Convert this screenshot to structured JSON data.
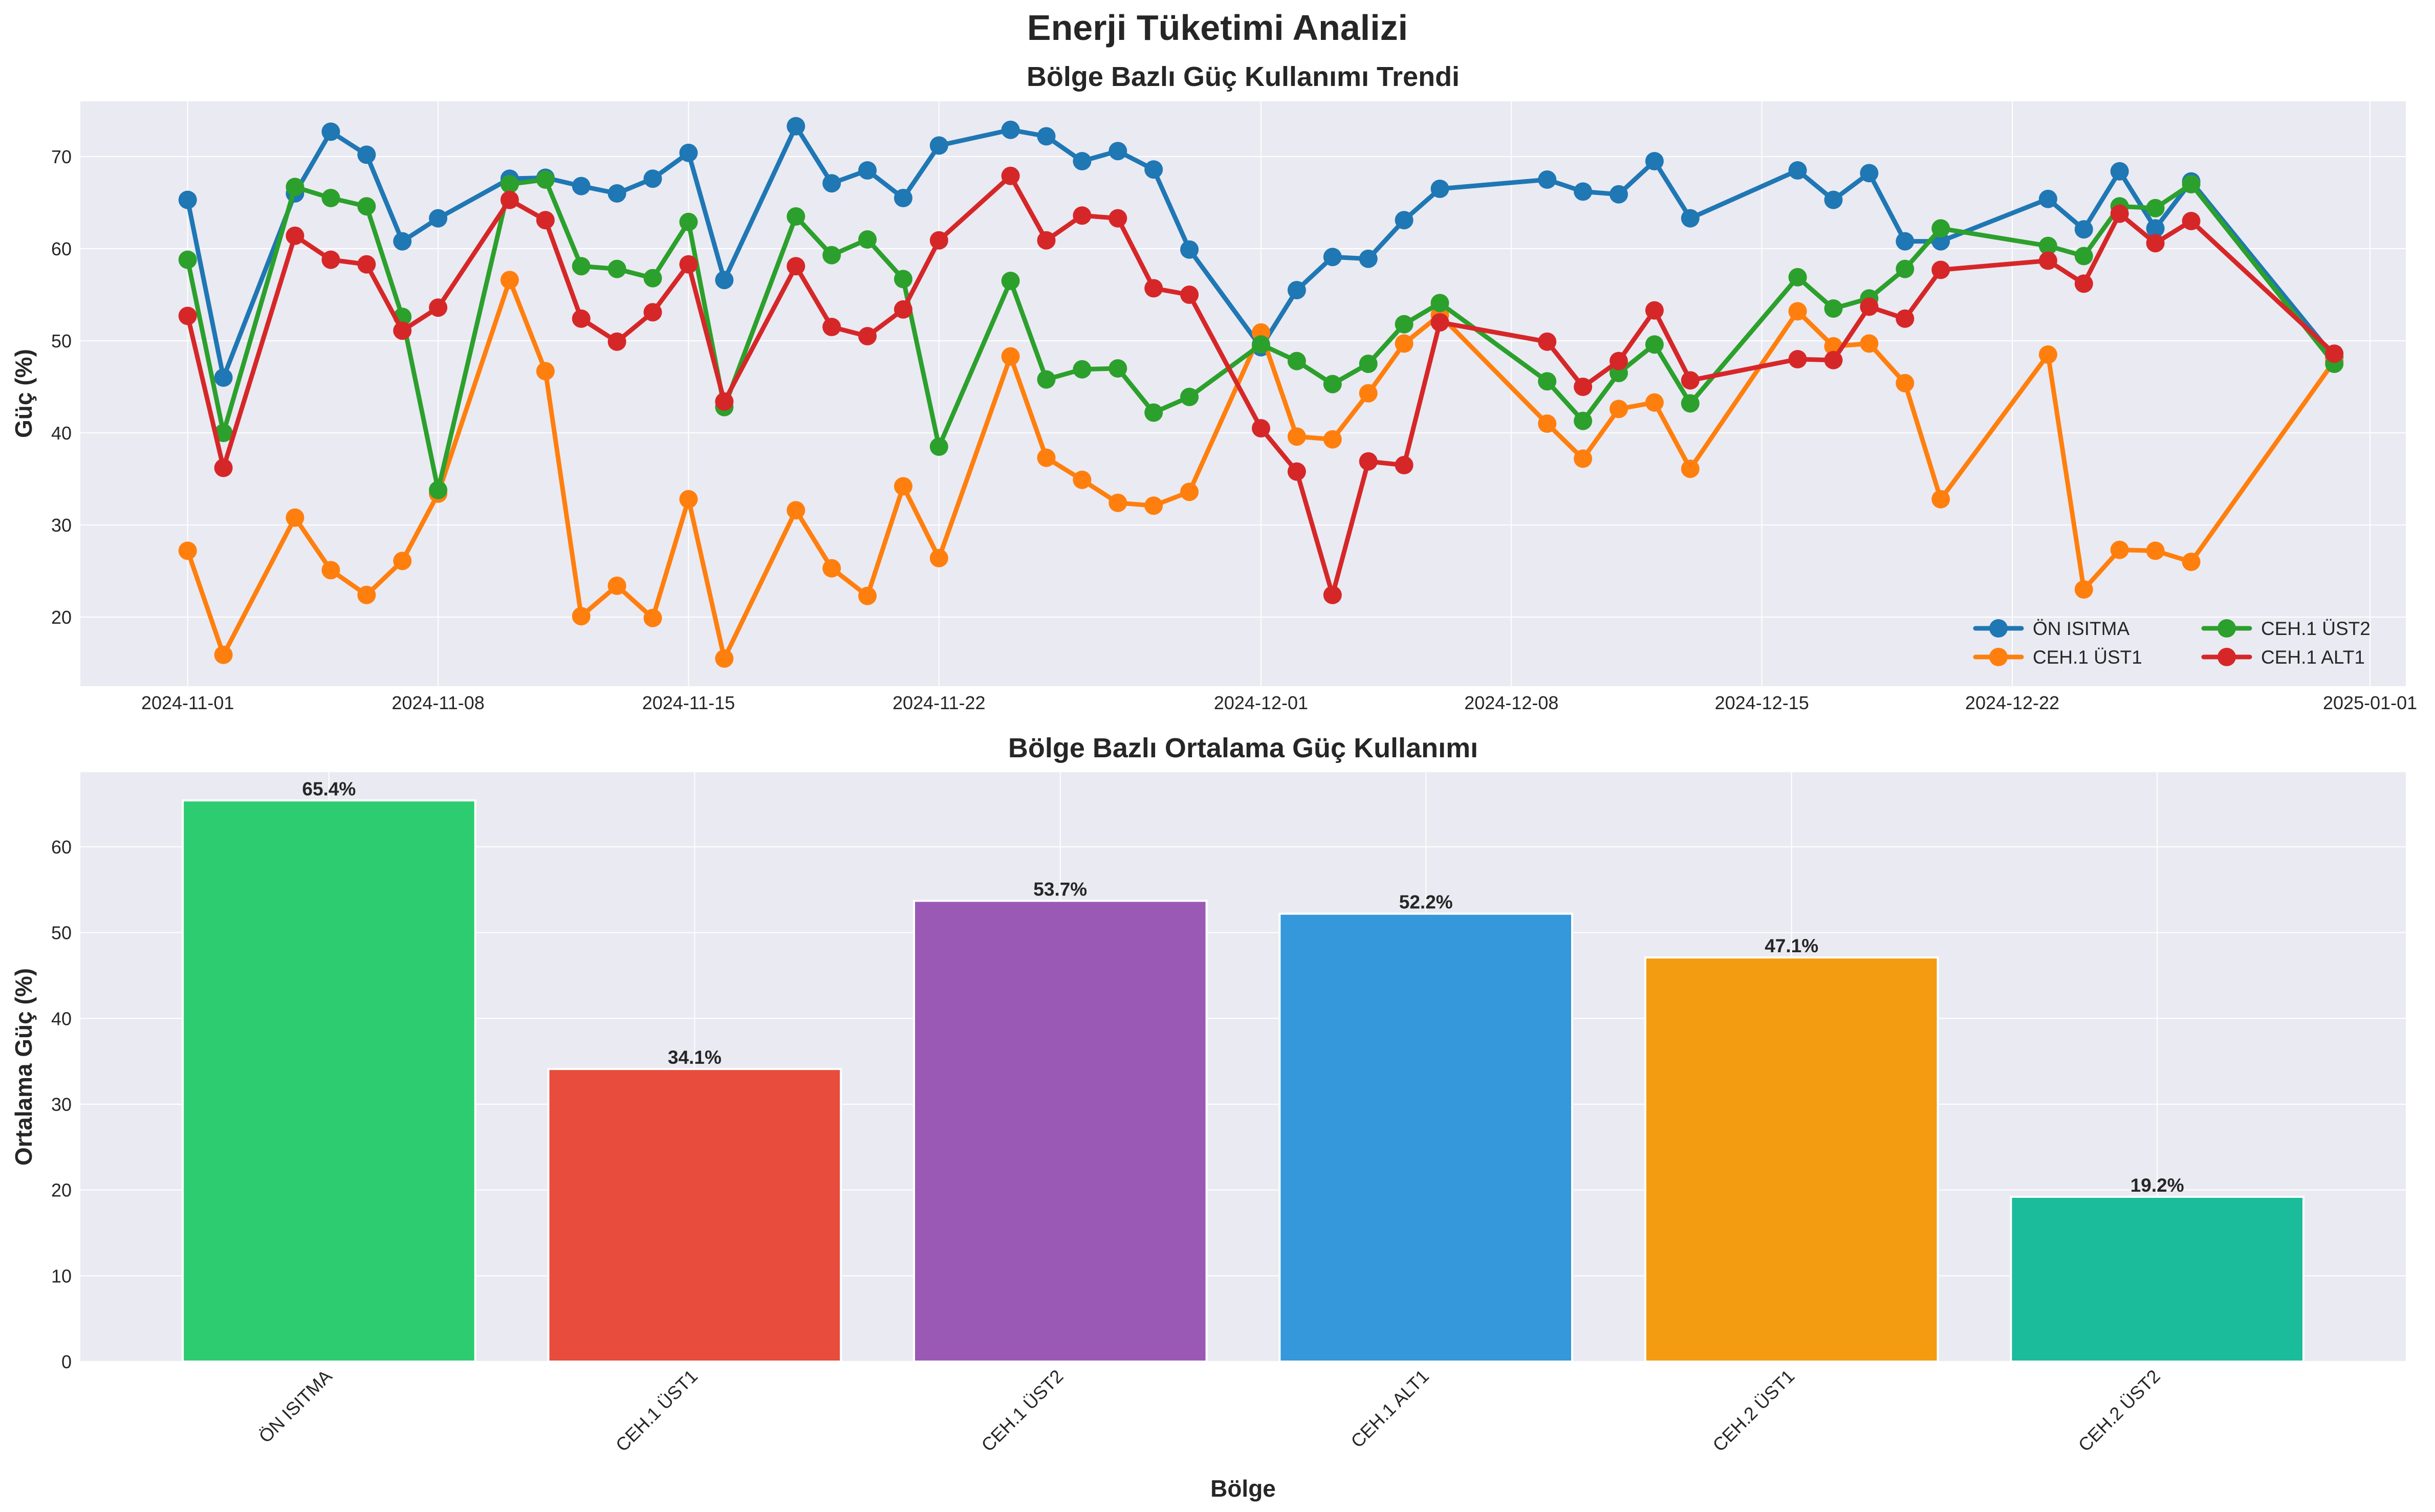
{
  "figure": {
    "suptitle": "Enerji Tüketimi Analizi",
    "colors": {
      "plot_bg": "#EAEAF2",
      "grid": "#FFFFFF",
      "text": "#262626"
    }
  },
  "chart_data": [
    {
      "type": "line",
      "title": "Bölge Bazlı Güç Kullanımı Trendi",
      "xlabel": "",
      "ylabel": "Güç (%)",
      "xlim": [
        "2024-10-29",
        "2025-01-02"
      ],
      "ylim": [
        12.5,
        76
      ],
      "x_ticks": [
        "2024-11-01",
        "2024-11-08",
        "2024-11-15",
        "2024-11-22",
        "2024-12-01",
        "2024-12-08",
        "2024-12-15",
        "2024-12-22",
        "2025-01-01"
      ],
      "y_ticks": [
        20,
        30,
        40,
        50,
        60,
        70
      ],
      "grid": true,
      "legend": {
        "placement": "bottom-right",
        "columns": 2
      },
      "x": [
        "2024-11-01",
        "2024-11-02",
        "2024-11-04",
        "2024-11-05",
        "2024-11-06",
        "2024-11-07",
        "2024-11-08",
        "2024-11-10",
        "2024-11-11",
        "2024-11-12",
        "2024-11-13",
        "2024-11-14",
        "2024-11-15",
        "2024-11-16",
        "2024-11-18",
        "2024-11-19",
        "2024-11-20",
        "2024-11-21",
        "2024-11-22",
        "2024-11-24",
        "2024-11-25",
        "2024-11-26",
        "2024-11-27",
        "2024-11-28",
        "2024-11-29",
        "2024-12-01",
        "2024-12-02",
        "2024-12-03",
        "2024-12-04",
        "2024-12-05",
        "2024-12-06",
        "2024-12-09",
        "2024-12-10",
        "2024-12-11",
        "2024-12-12",
        "2024-12-13",
        "2024-12-16",
        "2024-12-17",
        "2024-12-18",
        "2024-12-19",
        "2024-12-20",
        "2024-12-23",
        "2024-12-24",
        "2024-12-25",
        "2024-12-26",
        "2024-12-27",
        "2024-12-31"
      ],
      "series": [
        {
          "name": "ÖN ISITMA",
          "color": "#1F77B4",
          "values": [
            65.3,
            46.0,
            66.0,
            72.7,
            70.2,
            60.8,
            63.3,
            67.6,
            67.7,
            66.8,
            66.0,
            67.6,
            70.4,
            56.6,
            73.3,
            67.1,
            68.5,
            65.5,
            71.2,
            72.9,
            72.2,
            69.5,
            70.6,
            68.6,
            59.9,
            49.3,
            55.5,
            59.1,
            58.9,
            63.1,
            66.5,
            67.5,
            66.2,
            65.9,
            69.5,
            63.3,
            68.5,
            65.3,
            68.2,
            60.8,
            60.8,
            65.4,
            62.1,
            68.4,
            62.2,
            67.3,
            48.2
          ]
        },
        {
          "name": "CEH.1 ÜST1",
          "color": "#FF7F0E",
          "values": [
            27.2,
            15.9,
            30.8,
            25.1,
            22.4,
            26.1,
            33.4,
            56.6,
            46.7,
            20.1,
            23.4,
            19.9,
            32.8,
            15.5,
            31.6,
            25.3,
            22.3,
            34.2,
            26.4,
            48.3,
            37.3,
            34.9,
            32.4,
            32.1,
            33.6,
            50.9,
            39.6,
            39.3,
            44.3,
            49.7,
            52.8,
            41.0,
            37.2,
            42.6,
            43.3,
            36.1,
            53.2,
            49.4,
            49.7,
            45.4,
            32.8,
            48.5,
            23.0,
            27.3,
            27.2,
            26.0,
            47.8
          ]
        },
        {
          "name": "CEH.1 ÜST2",
          "color": "#2CA02C",
          "values": [
            58.8,
            40.0,
            66.7,
            65.5,
            64.6,
            52.6,
            33.8,
            67.0,
            67.5,
            58.1,
            57.8,
            56.8,
            62.9,
            42.8,
            63.5,
            59.3,
            61.0,
            56.7,
            38.5,
            56.5,
            45.8,
            46.9,
            47.0,
            42.2,
            43.9,
            49.6,
            47.8,
            45.3,
            47.5,
            51.8,
            54.1,
            45.6,
            41.3,
            46.5,
            49.6,
            43.2,
            56.9,
            53.5,
            54.6,
            57.8,
            62.2,
            60.3,
            59.2,
            64.6,
            64.4,
            67.0,
            47.5
          ]
        },
        {
          "name": "CEH.1 ALT1",
          "color": "#D62728",
          "values": [
            52.7,
            36.2,
            61.4,
            58.8,
            58.3,
            51.1,
            53.6,
            65.3,
            63.1,
            52.4,
            49.9,
            53.1,
            58.3,
            43.4,
            58.1,
            51.5,
            50.5,
            53.4,
            60.9,
            67.9,
            60.9,
            63.6,
            63.3,
            55.7,
            55.0,
            40.5,
            35.8,
            22.4,
            36.9,
            36.5,
            52.0,
            49.9,
            45.0,
            47.8,
            53.3,
            45.7,
            48.0,
            47.9,
            53.7,
            52.4,
            57.7,
            58.7,
            56.2,
            63.8,
            60.6,
            63.0,
            48.6
          ]
        }
      ]
    },
    {
      "type": "bar",
      "title": "Bölge Bazlı Ortalama Güç Kullanımı",
      "xlabel": "Bölge",
      "ylabel": "Ortalama Güç (%)",
      "ylim": [
        0,
        68.7
      ],
      "y_ticks": [
        0,
        10,
        20,
        30,
        40,
        50,
        60
      ],
      "grid": true,
      "categories": [
        "ÖN ISITMA",
        "CEH.1 ÜST1",
        "CEH.1 ÜST2",
        "CEH.1 ALT1",
        "CEH.2 ÜST1",
        "CEH.2 ÜST2"
      ],
      "values": [
        65.4,
        34.1,
        53.7,
        52.2,
        47.1,
        19.2
      ],
      "data_labels": [
        "65.4%",
        "34.1%",
        "53.7%",
        "52.2%",
        "47.1%",
        "19.2%"
      ],
      "colors": [
        "#2ECC71",
        "#E74C3C",
        "#9B59B6",
        "#3498DB",
        "#F39C12",
        "#1ABC9C"
      ]
    }
  ]
}
